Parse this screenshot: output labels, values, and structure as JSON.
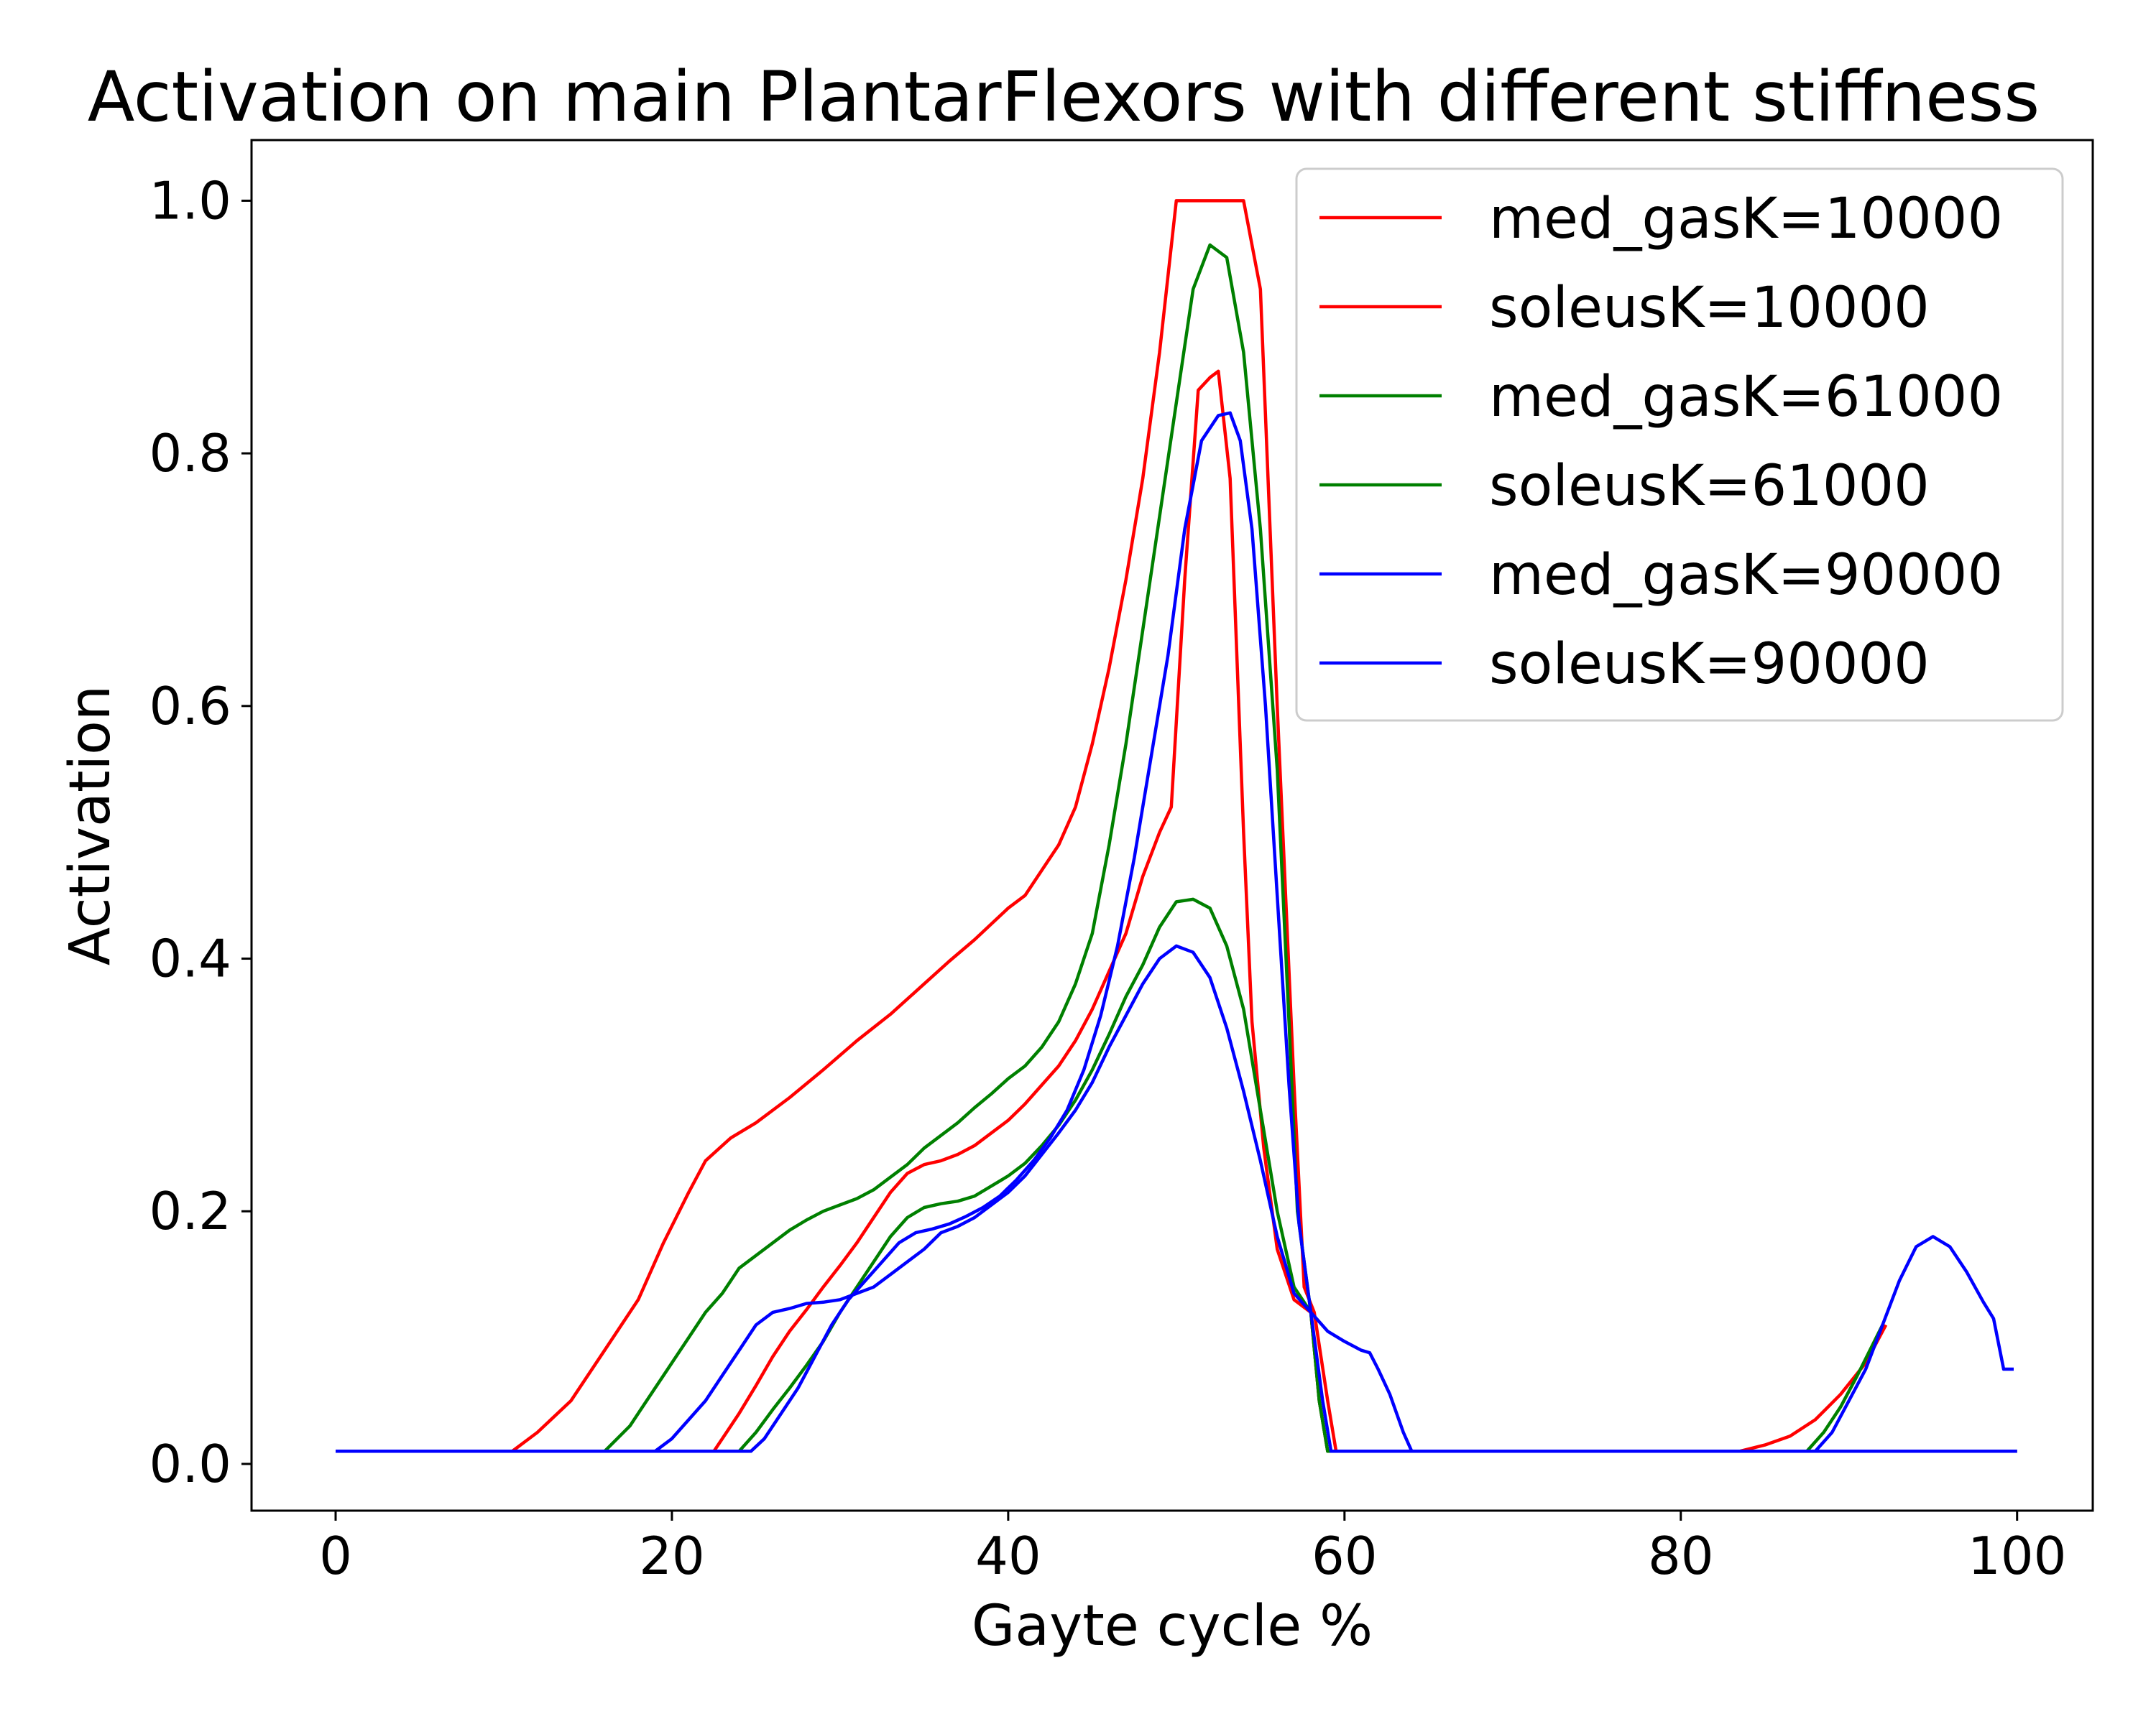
{
  "chart_data": {
    "type": "line",
    "title": "Activation on main PlantarFlexors with different stiffness",
    "xlabel": "Gayte cycle %",
    "ylabel": "Activation",
    "xlim": [
      -5,
      104.5
    ],
    "ylim": [
      -0.037,
      1.048
    ],
    "xticks": [
      0,
      20,
      40,
      60,
      80,
      100
    ],
    "yticks": [
      0.0,
      0.2,
      0.4,
      0.6,
      0.8,
      1.0
    ],
    "xtick_labels": [
      "0",
      "20",
      "40",
      "60",
      "80",
      "100"
    ],
    "ytick_labels": [
      "0.0",
      "0.2",
      "0.4",
      "0.6",
      "0.8",
      "1.0"
    ],
    "grid": false,
    "legend_position": "top-right",
    "series": [
      {
        "name": "med_gasK=10000",
        "color": "#ff0000",
        "points": [
          [
            0,
            0.01
          ],
          [
            10.5,
            0.01
          ],
          [
            12,
            0.025
          ],
          [
            14,
            0.05
          ],
          [
            16,
            0.09
          ],
          [
            18,
            0.13
          ],
          [
            19.5,
            0.175
          ],
          [
            21,
            0.215
          ],
          [
            22,
            0.24
          ],
          [
            23.5,
            0.258
          ],
          [
            25,
            0.27
          ],
          [
            27,
            0.29
          ],
          [
            29,
            0.312
          ],
          [
            31,
            0.335
          ],
          [
            33,
            0.356
          ],
          [
            35,
            0.38
          ],
          [
            36.5,
            0.398
          ],
          [
            38,
            0.415
          ],
          [
            40,
            0.44
          ],
          [
            41,
            0.45
          ],
          [
            42,
            0.47
          ],
          [
            43,
            0.49
          ],
          [
            44,
            0.52
          ],
          [
            45,
            0.57
          ],
          [
            46,
            0.63
          ],
          [
            47,
            0.7
          ],
          [
            48,
            0.78
          ],
          [
            49,
            0.88
          ],
          [
            50,
            1.0
          ],
          [
            54,
            1.0
          ],
          [
            55,
            0.93
          ],
          [
            56,
            0.6
          ],
          [
            57,
            0.3
          ],
          [
            57.6,
            0.14
          ],
          [
            58.2,
            0.12
          ],
          [
            59,
            0.05
          ],
          [
            59.5,
            0.01
          ],
          [
            83.5,
            0.01
          ],
          [
            85,
            0.015
          ],
          [
            86.5,
            0.022
          ],
          [
            88,
            0.035
          ],
          [
            89.5,
            0.055
          ],
          [
            91,
            0.08
          ],
          [
            92.2,
            0.11
          ]
        ]
      },
      {
        "name": "soleusK=10000",
        "color": "#ff0000",
        "points": [
          [
            0,
            0.01
          ],
          [
            22.5,
            0.01
          ],
          [
            23,
            0.02
          ],
          [
            24,
            0.04
          ],
          [
            25,
            0.062
          ],
          [
            26,
            0.085
          ],
          [
            27,
            0.105
          ],
          [
            28,
            0.122
          ],
          [
            29,
            0.14
          ],
          [
            30,
            0.157
          ],
          [
            31,
            0.175
          ],
          [
            32,
            0.195
          ],
          [
            33,
            0.215
          ],
          [
            34,
            0.23
          ],
          [
            35,
            0.237
          ],
          [
            36,
            0.24
          ],
          [
            37,
            0.245
          ],
          [
            38,
            0.252
          ],
          [
            39,
            0.262
          ],
          [
            40,
            0.272
          ],
          [
            41,
            0.285
          ],
          [
            42,
            0.3
          ],
          [
            43,
            0.315
          ],
          [
            44,
            0.335
          ],
          [
            45,
            0.36
          ],
          [
            46,
            0.39
          ],
          [
            47,
            0.42
          ],
          [
            48,
            0.465
          ],
          [
            49,
            0.5
          ],
          [
            49.7,
            0.52
          ],
          [
            50.5,
            0.7
          ],
          [
            51.3,
            0.85
          ],
          [
            52,
            0.86
          ],
          [
            52.5,
            0.865
          ],
          [
            53.2,
            0.78
          ],
          [
            54,
            0.5
          ],
          [
            54.5,
            0.35
          ],
          [
            55.2,
            0.25
          ],
          [
            56,
            0.17
          ],
          [
            57,
            0.13
          ],
          [
            58,
            0.12
          ],
          [
            58.5,
            0.05
          ],
          [
            59,
            0.01
          ],
          [
            100,
            0.01
          ]
        ]
      },
      {
        "name": "med_gasK=61000",
        "color": "#008000",
        "points": [
          [
            0,
            0.01
          ],
          [
            16,
            0.01
          ],
          [
            17.5,
            0.03
          ],
          [
            19,
            0.06
          ],
          [
            20,
            0.08
          ],
          [
            21,
            0.1
          ],
          [
            22,
            0.12
          ],
          [
            23,
            0.135
          ],
          [
            24,
            0.155
          ],
          [
            25,
            0.165
          ],
          [
            26,
            0.175
          ],
          [
            27,
            0.185
          ],
          [
            28,
            0.193
          ],
          [
            29,
            0.2
          ],
          [
            30,
            0.205
          ],
          [
            31,
            0.21
          ],
          [
            32,
            0.217
          ],
          [
            33,
            0.227
          ],
          [
            34,
            0.237
          ],
          [
            35,
            0.25
          ],
          [
            36,
            0.26
          ],
          [
            37,
            0.27
          ],
          [
            38,
            0.282
          ],
          [
            39,
            0.293
          ],
          [
            40,
            0.305
          ],
          [
            41,
            0.315
          ],
          [
            42,
            0.33
          ],
          [
            43,
            0.35
          ],
          [
            44,
            0.38
          ],
          [
            45,
            0.42
          ],
          [
            46,
            0.49
          ],
          [
            47,
            0.57
          ],
          [
            48,
            0.66
          ],
          [
            49,
            0.75
          ],
          [
            50,
            0.84
          ],
          [
            51,
            0.93
          ],
          [
            52,
            0.965
          ],
          [
            53,
            0.955
          ],
          [
            54,
            0.88
          ],
          [
            55,
            0.74
          ],
          [
            56,
            0.55
          ],
          [
            56.7,
            0.35
          ],
          [
            57.2,
            0.2
          ],
          [
            58,
            0.12
          ],
          [
            58.5,
            0.05
          ],
          [
            59,
            0.01
          ],
          [
            87.5,
            0.01
          ],
          [
            88.5,
            0.025
          ],
          [
            89.5,
            0.045
          ],
          [
            90.5,
            0.07
          ],
          [
            92,
            0.11
          ]
        ]
      },
      {
        "name": "soleusK=61000",
        "color": "#008000",
        "points": [
          [
            0,
            0.01
          ],
          [
            24,
            0.01
          ],
          [
            25,
            0.025
          ],
          [
            26,
            0.043
          ],
          [
            27,
            0.06
          ],
          [
            28,
            0.078
          ],
          [
            29,
            0.097
          ],
          [
            30,
            0.12
          ],
          [
            31,
            0.14
          ],
          [
            32,
            0.16
          ],
          [
            33,
            0.18
          ],
          [
            34,
            0.195
          ],
          [
            35,
            0.203
          ],
          [
            36,
            0.206
          ],
          [
            37,
            0.208
          ],
          [
            38,
            0.212
          ],
          [
            39,
            0.22
          ],
          [
            40,
            0.228
          ],
          [
            41,
            0.238
          ],
          [
            42,
            0.252
          ],
          [
            43,
            0.268
          ],
          [
            44,
            0.288
          ],
          [
            45,
            0.312
          ],
          [
            46,
            0.34
          ],
          [
            47,
            0.37
          ],
          [
            48,
            0.395
          ],
          [
            49,
            0.425
          ],
          [
            50,
            0.445
          ],
          [
            51,
            0.447
          ],
          [
            52,
            0.44
          ],
          [
            53,
            0.41
          ],
          [
            54,
            0.36
          ],
          [
            55,
            0.28
          ],
          [
            56,
            0.2
          ],
          [
            57,
            0.14
          ],
          [
            58,
            0.12
          ],
          [
            58.5,
            0.05
          ],
          [
            59,
            0.01
          ],
          [
            100,
            0.01
          ]
        ]
      },
      {
        "name": "med_gasK=90000",
        "color": "#0000ff",
        "points": [
          [
            0,
            0.01
          ],
          [
            19,
            0.01
          ],
          [
            20,
            0.02
          ],
          [
            21,
            0.035
          ],
          [
            22,
            0.05
          ],
          [
            23,
            0.07
          ],
          [
            24,
            0.09
          ],
          [
            25,
            0.11
          ],
          [
            26,
            0.12
          ],
          [
            27,
            0.123
          ],
          [
            28,
            0.127
          ],
          [
            29,
            0.128
          ],
          [
            30,
            0.13
          ],
          [
            31,
            0.135
          ],
          [
            32,
            0.14
          ],
          [
            33,
            0.15
          ],
          [
            34,
            0.16
          ],
          [
            35,
            0.17
          ],
          [
            36,
            0.183
          ],
          [
            37,
            0.188
          ],
          [
            38,
            0.195
          ],
          [
            39,
            0.205
          ],
          [
            40,
            0.215
          ],
          [
            41,
            0.228
          ],
          [
            42,
            0.245
          ],
          [
            43,
            0.262
          ],
          [
            44,
            0.28
          ],
          [
            45,
            0.302
          ],
          [
            46,
            0.33
          ],
          [
            47,
            0.355
          ],
          [
            48,
            0.38
          ],
          [
            49,
            0.4
          ],
          [
            50,
            0.41
          ],
          [
            51,
            0.405
          ],
          [
            52,
            0.385
          ],
          [
            53,
            0.345
          ],
          [
            54,
            0.295
          ],
          [
            55,
            0.24
          ],
          [
            56,
            0.18
          ],
          [
            57,
            0.135
          ],
          [
            58,
            0.12
          ],
          [
            59,
            0.105
          ],
          [
            60,
            0.097
          ],
          [
            61,
            0.09
          ],
          [
            61.5,
            0.088
          ],
          [
            62,
            0.075
          ],
          [
            62.7,
            0.055
          ],
          [
            63.5,
            0.025
          ],
          [
            64,
            0.01
          ],
          [
            100,
            0.01
          ]
        ]
      },
      {
        "name": "soleusK=90000",
        "color": "#0000ff",
        "points": [
          [
            0,
            0.01
          ],
          [
            24.7,
            0.01
          ],
          [
            25.5,
            0.02
          ],
          [
            26.5,
            0.04
          ],
          [
            27.5,
            0.06
          ],
          [
            28.5,
            0.085
          ],
          [
            29.5,
            0.11
          ],
          [
            30.5,
            0.13
          ],
          [
            31.5,
            0.145
          ],
          [
            32.5,
            0.16
          ],
          [
            33.5,
            0.175
          ],
          [
            34.5,
            0.183
          ],
          [
            35.5,
            0.186
          ],
          [
            36.5,
            0.19
          ],
          [
            37.5,
            0.196
          ],
          [
            38.5,
            0.203
          ],
          [
            39.5,
            0.212
          ],
          [
            40.5,
            0.225
          ],
          [
            41.5,
            0.24
          ],
          [
            42.5,
            0.258
          ],
          [
            43.5,
            0.28
          ],
          [
            44.5,
            0.312
          ],
          [
            45.5,
            0.355
          ],
          [
            46.5,
            0.41
          ],
          [
            47.5,
            0.48
          ],
          [
            48.5,
            0.56
          ],
          [
            49.5,
            0.64
          ],
          [
            50.5,
            0.74
          ],
          [
            51.5,
            0.81
          ],
          [
            52.5,
            0.83
          ],
          [
            53.2,
            0.832
          ],
          [
            53.8,
            0.81
          ],
          [
            54.5,
            0.74
          ],
          [
            55.3,
            0.6
          ],
          [
            56,
            0.45
          ],
          [
            56.7,
            0.3
          ],
          [
            57.3,
            0.19
          ],
          [
            58,
            0.12
          ],
          [
            58.7,
            0.05
          ],
          [
            59.2,
            0.01
          ],
          [
            88,
            0.01
          ],
          [
            89,
            0.025
          ],
          [
            90,
            0.05
          ],
          [
            91,
            0.075
          ],
          [
            92,
            0.11
          ],
          [
            93,
            0.145
          ],
          [
            94,
            0.172
          ],
          [
            95,
            0.18
          ],
          [
            96,
            0.172
          ],
          [
            97,
            0.152
          ],
          [
            98,
            0.128
          ],
          [
            98.6,
            0.115
          ],
          [
            99.2,
            0.075
          ],
          [
            99.8,
            0.075
          ]
        ]
      }
    ]
  }
}
